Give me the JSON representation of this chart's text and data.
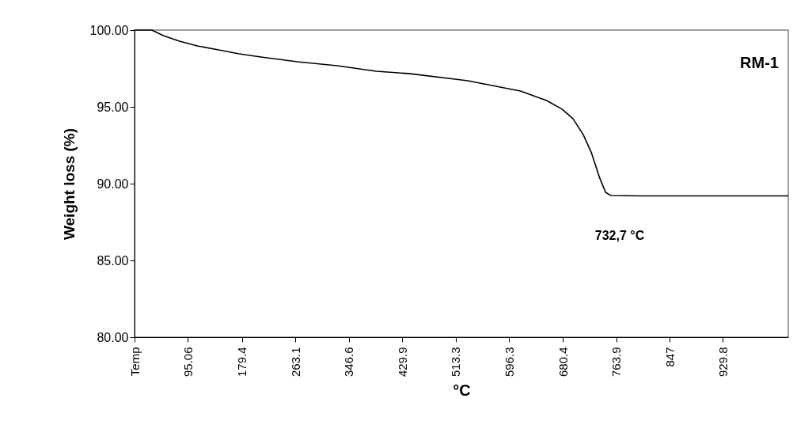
{
  "chart_data": {
    "type": "line",
    "xlabel": "°C",
    "ylabel": "Weight loss (%)",
    "x": [
      12,
      39,
      57,
      82,
      110,
      143,
      175,
      209,
      266,
      328,
      389,
      442,
      512,
      532,
      614,
      655,
      679,
      696,
      712,
      725,
      737,
      747,
      755,
      800,
      900,
      1032
    ],
    "series": [
      {
        "color": "#000000",
        "values": [
          100,
          100,
          99.64,
          99.28,
          98.97,
          98.71,
          98.45,
          98.25,
          97.94,
          97.68,
          97.32,
          97.16,
          96.8,
          96.7,
          96.03,
          95.41,
          94.85,
          94.23,
          93.2,
          92.0,
          90.46,
          89.43,
          89.23,
          89.2,
          89.2,
          89.2
        ]
      }
    ],
    "xlim": [
      12,
      1032
    ],
    "xticks": [
      {
        "value": 12,
        "label": "Temp"
      },
      95.06,
      179.4,
      263.1,
      346.6,
      429.9,
      513.3,
      596.3,
      680.4,
      763.9,
      847,
      929.8
    ],
    "ylim": [
      80,
      100
    ],
    "yticks": [
      {
        "value": 80,
        "label": "80.00"
      },
      {
        "value": 85,
        "label": "85.00"
      },
      {
        "value": 90,
        "label": "90.00"
      },
      {
        "value": 95,
        "label": "95.00"
      },
      {
        "value": 100,
        "label": "100.00"
      }
    ],
    "annotations": [
      "732,7 °C",
      "RM-1"
    ],
    "grid": false,
    "marker": "none",
    "line_style": "solid"
  }
}
